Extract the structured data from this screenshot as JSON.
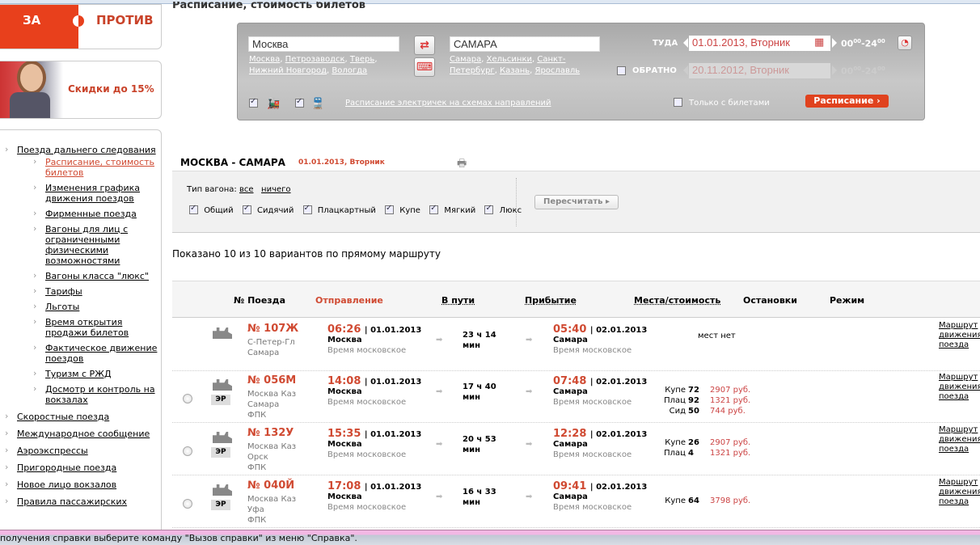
{
  "page_title": "Расписание, стоимость билетов",
  "banner": {
    "za": "ЗА",
    "protiv": "ПРОТИВ",
    "promo": "Скидки до 15%"
  },
  "sidebar": {
    "items": [
      {
        "label": "Поезда дальнего следования",
        "children": [
          {
            "label": "Расписание, стоимость билетов",
            "active": true
          },
          {
            "label": "Изменения графика движения поездов"
          },
          {
            "label": "Фирменные поезда"
          },
          {
            "label": "Вагоны для лиц с ограниченными физическими возможностями"
          },
          {
            "label": "Вагоны класса \"люкс\""
          },
          {
            "label": "Тарифы"
          },
          {
            "label": "Льготы"
          },
          {
            "label": "Время открытия продажи билетов"
          },
          {
            "label": "Фактическое движение поездов"
          },
          {
            "label": "Туризм с РЖД"
          },
          {
            "label": "Досмотр и контроль на вокзалах"
          }
        ]
      },
      {
        "label": "Скоростные поезда"
      },
      {
        "label": "Международное сообщение"
      },
      {
        "label": "Аэроэкспрессы"
      },
      {
        "label": "Пригородные поезда"
      },
      {
        "label": "Новое лицо вокзалов"
      },
      {
        "label": "Правила пассажирских"
      }
    ]
  },
  "search": {
    "from": "Москва",
    "to": "САМАРА",
    "from_suggest": [
      "Москва",
      "Петрозаводск",
      "Тверь",
      "Нижний Новгород",
      "Вологда"
    ],
    "to_suggest": [
      "Самара",
      "Хельсинки",
      "Санкт-Петербург",
      "Казань",
      "Ярославль"
    ],
    "there_label": "ТУДА",
    "there_date": "01.01.2013, Вторник",
    "back_label": "ОБРАТНО",
    "back_date": "20.11.2012, Вторник",
    "time_from": "00",
    "time_to": "24",
    "time_sup": "00",
    "elektr_link": "Расписание электричек на схемах направлений",
    "only_tickets": "Только с билетами",
    "submit": "Расписание"
  },
  "route": {
    "title": "МОСКВА - САМАРА",
    "date": "01.01.2013, Вторник"
  },
  "filter": {
    "label": "Тип вагона:",
    "all": "все",
    "none": "ничего",
    "types": [
      "Общий",
      "Сидячий",
      "Плацкартный",
      "Купе",
      "Мягкий",
      "Люкс"
    ],
    "recalc": "Пересчитать"
  },
  "shown": "Показано 10 из 10 вариантов по прямому маршруту",
  "columns": [
    "№ Поезда",
    "Отправление",
    "В пути",
    "Прибытие",
    "Места/стоимость",
    "Остановки",
    "Режим"
  ],
  "tz": "Время московское",
  "route_link": [
    "Маршрут",
    "движения",
    "поезда"
  ],
  "trains": [
    {
      "num": "№ 107Ж",
      "st": [
        "С-Петер-Гл",
        "Самара"
      ],
      "dep": "06:26",
      "dep_date": "01.01.2013",
      "from": "Москва",
      "dur1": "23 ч 14",
      "dur2": "мин",
      "arr": "05:40",
      "arr_date": "02.01.2013",
      "to": "Самара",
      "er": false,
      "nomest": "мест нет",
      "seats": []
    },
    {
      "num": "№ 056М",
      "st": [
        "Москва Каз",
        "Самара",
        "ФПК"
      ],
      "dep": "14:08",
      "dep_date": "01.01.2013",
      "from": "Москва",
      "dur1": "17 ч 40",
      "dur2": "мин",
      "arr": "07:48",
      "arr_date": "02.01.2013",
      "to": "Самара",
      "er": "ЭР",
      "seats": [
        {
          "k": "Купе",
          "n": "72",
          "p": "2907 руб."
        },
        {
          "k": "Плац",
          "n": "92",
          "p": "1321 руб."
        },
        {
          "k": "Сид",
          "n": "50",
          "p": "744 руб."
        }
      ]
    },
    {
      "num": "№ 132У",
      "st": [
        "Москва Каз",
        "Орск",
        "ФПК"
      ],
      "dep": "15:35",
      "dep_date": "01.01.2013",
      "from": "Москва",
      "dur1": "20 ч 53",
      "dur2": "мин",
      "arr": "12:28",
      "arr_date": "02.01.2013",
      "to": "Самара",
      "er": "ЭР",
      "seats": [
        {
          "k": "Купе",
          "n": "26",
          "p": "2907 руб."
        },
        {
          "k": "Плац",
          "n": "4",
          "p": "1321 руб."
        }
      ]
    },
    {
      "num": "№ 040Й",
      "st": [
        "Москва Каз",
        "Уфа",
        "ФПК"
      ],
      "dep": "17:08",
      "dep_date": "01.01.2013",
      "from": "Москва",
      "dur1": "16 ч 33",
      "dur2": "мин",
      "arr": "09:41",
      "arr_date": "02.01.2013",
      "to": "Самара",
      "er": "ЭР",
      "seats": [
        {
          "k": "Купе",
          "n": "64",
          "p": "3798 руб."
        }
      ]
    }
  ],
  "statusbar": "получения справки выберите команду \"Вызов справки\" из меню \"Справка\".",
  "colors": {
    "accent": "#e0421e",
    "price": "#cc4444",
    "link_active": "#d04a32"
  }
}
